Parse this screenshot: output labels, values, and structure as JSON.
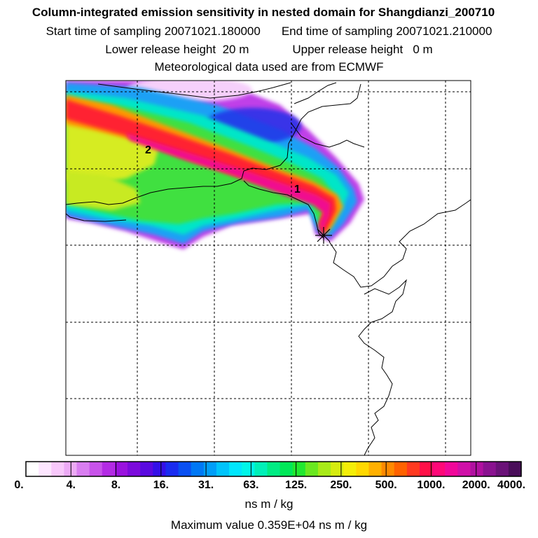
{
  "header": {
    "title": "Column-integrated emission sensitivity in nested domain for Shangdianzi_200710",
    "start_label": "Start time of sampling",
    "start_value": "20071021.180000",
    "end_label": "End time of sampling",
    "end_value": "20071021.210000",
    "lower_label": "Lower release height",
    "lower_value": "20 m",
    "upper_label": "Upper release height",
    "upper_value": "0 m",
    "met_line": "Meteorological data used are from ECMWF"
  },
  "chart_data": {
    "type": "heatmap",
    "title": "Column-integrated emission sensitivity in nested domain for Shangdianzi_200710",
    "colorbar": {
      "ticks": [
        "0.",
        "4.",
        "8.",
        "16.",
        "31.",
        "63.",
        "125.",
        "250.",
        "500.",
        "1000.",
        "2000.",
        "4000."
      ],
      "units": "ns m / kg",
      "colors": [
        "#ffffff",
        "#fde6ff",
        "#f8c8fb",
        "#ecaaf5",
        "#d97ef0",
        "#c853ea",
        "#b32be4",
        "#9a12de",
        "#7c0bdc",
        "#5a0ae0",
        "#3410e8",
        "#1a2cf0",
        "#0a50f2",
        "#0078f5",
        "#009ef8",
        "#00c4fb",
        "#00e6fd",
        "#00f5e8",
        "#00f0b8",
        "#00ec84",
        "#00e858",
        "#20e830",
        "#6ae820",
        "#a8ea18",
        "#d6ec10",
        "#f4ee08",
        "#ffd800",
        "#ffb000",
        "#ff8a00",
        "#ff6200",
        "#ff3a20",
        "#ff1048",
        "#ff0878",
        "#f0089a",
        "#d010a8",
        "#b010a0",
        "#8a1290",
        "#6a1278",
        "#4a0e5a"
      ]
    },
    "receptor_labels": [
      "1",
      "2"
    ],
    "max_value": 3590,
    "max_value_text": "Maximum value  0.359E+04 ns m / kg"
  }
}
